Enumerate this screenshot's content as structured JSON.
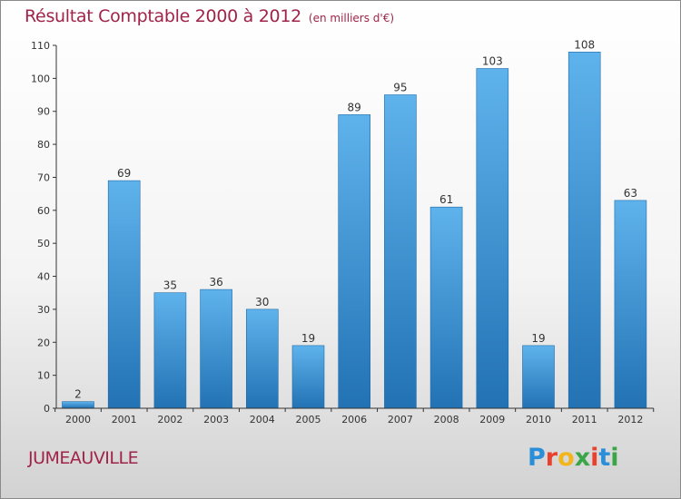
{
  "title": "Résultat Comptable 2000 à 2012",
  "subtitle": "(en milliers d'€)",
  "commune": "JUMEAUVILLE",
  "brand": {
    "letters": [
      "P",
      "r",
      "o",
      "x",
      "i",
      "t",
      "i"
    ],
    "colors": [
      "#2a8fd8",
      "#e8412c",
      "#f2b61c",
      "#3aa648",
      "#e8412c",
      "#2a8fd8",
      "#3aa648"
    ]
  },
  "colors": {
    "title": "#a0234a",
    "bar_top": "#5fb3ec",
    "bar_bottom": "#2272b4",
    "axis": "#333333"
  },
  "chart_data": {
    "type": "bar",
    "categories": [
      "2000",
      "2001",
      "2002",
      "2003",
      "2004",
      "2005",
      "2006",
      "2007",
      "2008",
      "2009",
      "2010",
      "2011",
      "2012"
    ],
    "values": [
      2,
      69,
      35,
      36,
      30,
      19,
      89,
      95,
      61,
      103,
      19,
      108,
      63
    ],
    "title": "Résultat Comptable 2000 à 2012",
    "subtitle": "(en milliers d'€)",
    "ylim": [
      0,
      110
    ],
    "yticks": [
      0,
      10,
      20,
      30,
      40,
      50,
      60,
      70,
      80,
      90,
      100,
      110
    ],
    "grid": false,
    "legend": "none"
  }
}
